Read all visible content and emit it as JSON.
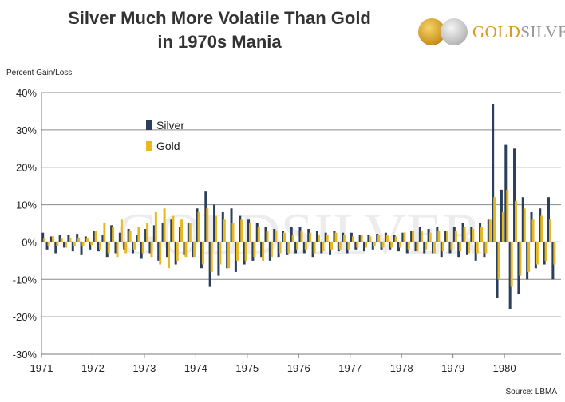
{
  "title_line1": "Silver Much More Volatile Than Gold",
  "title_line2": "in 1970s Mania",
  "logo": {
    "text_gold": "GOLD",
    "text_silver": "SILVER"
  },
  "watermark": "GOLDSILVER",
  "source": "Source: LBMA",
  "chart_data": {
    "type": "bar",
    "title": "Silver Much More Volatile Than Gold in 1970s Mania",
    "ylabel": "Percent Gain/Loss",
    "xlabel": "",
    "xlim": [
      1971,
      1981.1
    ],
    "ylim": [
      -30,
      40
    ],
    "y_ticks": [
      "-30%",
      "-20%",
      "-10%",
      "0%",
      "10%",
      "20%",
      "30%",
      "40%"
    ],
    "y_tick_values": [
      -30,
      -20,
      -10,
      0,
      10,
      20,
      30,
      40
    ],
    "x_ticks": [
      "1971",
      "1972",
      "1973",
      "1974",
      "1975",
      "1976",
      "1977",
      "1978",
      "1979",
      "1980"
    ],
    "grid": "horizontal",
    "legend": "upper-left",
    "colors": {
      "Silver": "#2b3f5c",
      "Gold": "#e8b820"
    },
    "x_start": "1971-01",
    "x_step": "month",
    "series": [
      {
        "name": "Silver",
        "values": [
          2.5,
          -2,
          1.5,
          -3,
          2,
          -1.5,
          1.8,
          -2.5,
          2.2,
          -3.5,
          1.5,
          -2,
          3,
          -2.5,
          2,
          -4,
          4.5,
          -3,
          2.5,
          -2,
          3.5,
          -3,
          2,
          -4.5,
          3.5,
          -3,
          4.5,
          -5,
          5,
          -4,
          6,
          -6,
          4,
          -3.5,
          5,
          -4,
          9,
          -7,
          13.5,
          -12,
          10,
          -9,
          8,
          -7,
          9,
          -8,
          7,
          -6,
          6,
          -5,
          5,
          -4,
          4,
          -5,
          3.5,
          -4,
          3,
          -3.5,
          4,
          -3,
          4,
          -3,
          3.5,
          -4,
          3,
          -3,
          2.5,
          -3.5,
          3,
          -2.5,
          2.5,
          -3,
          2.5,
          -2,
          2,
          -2.5,
          1.8,
          -2,
          2.2,
          -2,
          2.5,
          -2,
          2,
          -2.5,
          2.5,
          -3,
          3,
          -2.5,
          4,
          -3,
          3.5,
          -3,
          4,
          -4,
          3,
          -3,
          4,
          -4,
          5,
          -3.5,
          4,
          -5,
          5,
          -4,
          6,
          37,
          -15,
          14,
          26,
          -18,
          25,
          -14,
          12,
          -10,
          8,
          -7,
          9,
          -6,
          12,
          -10
        ]
      },
      {
        "name": "Gold",
        "values": [
          1,
          -1,
          1.5,
          -1,
          1,
          -1.5,
          1,
          -1,
          1.2,
          -1,
          1,
          -0.8,
          3,
          -2,
          5,
          -3,
          4,
          -4,
          6,
          -3,
          3,
          -2,
          4,
          -3,
          5,
          -4,
          8,
          -6,
          9,
          -7,
          7,
          -5,
          6,
          -4,
          5,
          -4,
          8,
          -6,
          9,
          -8,
          7,
          -6,
          6,
          -7,
          5,
          -5,
          6,
          -5,
          5,
          -4,
          4,
          -5,
          3,
          -4,
          3,
          -3,
          2.5,
          -3,
          2,
          -2,
          3,
          -2,
          2.5,
          -3,
          2,
          -2.5,
          2,
          -2,
          2.5,
          -2,
          2,
          -2,
          1.5,
          -1.5,
          2,
          -1.5,
          1.5,
          -1,
          2,
          -1.5,
          2,
          -1.5,
          1.5,
          -1.5,
          2.5,
          -2,
          3,
          -2.5,
          3,
          -2,
          2.5,
          -3,
          3,
          -2.5,
          3,
          -2,
          3,
          -2.5,
          4,
          -3,
          3.5,
          -3,
          4,
          -3,
          6,
          12,
          -10,
          8,
          14,
          -12,
          11,
          -9,
          9,
          -8,
          6,
          -6,
          7,
          -5,
          6,
          -6
        ]
      }
    ]
  }
}
